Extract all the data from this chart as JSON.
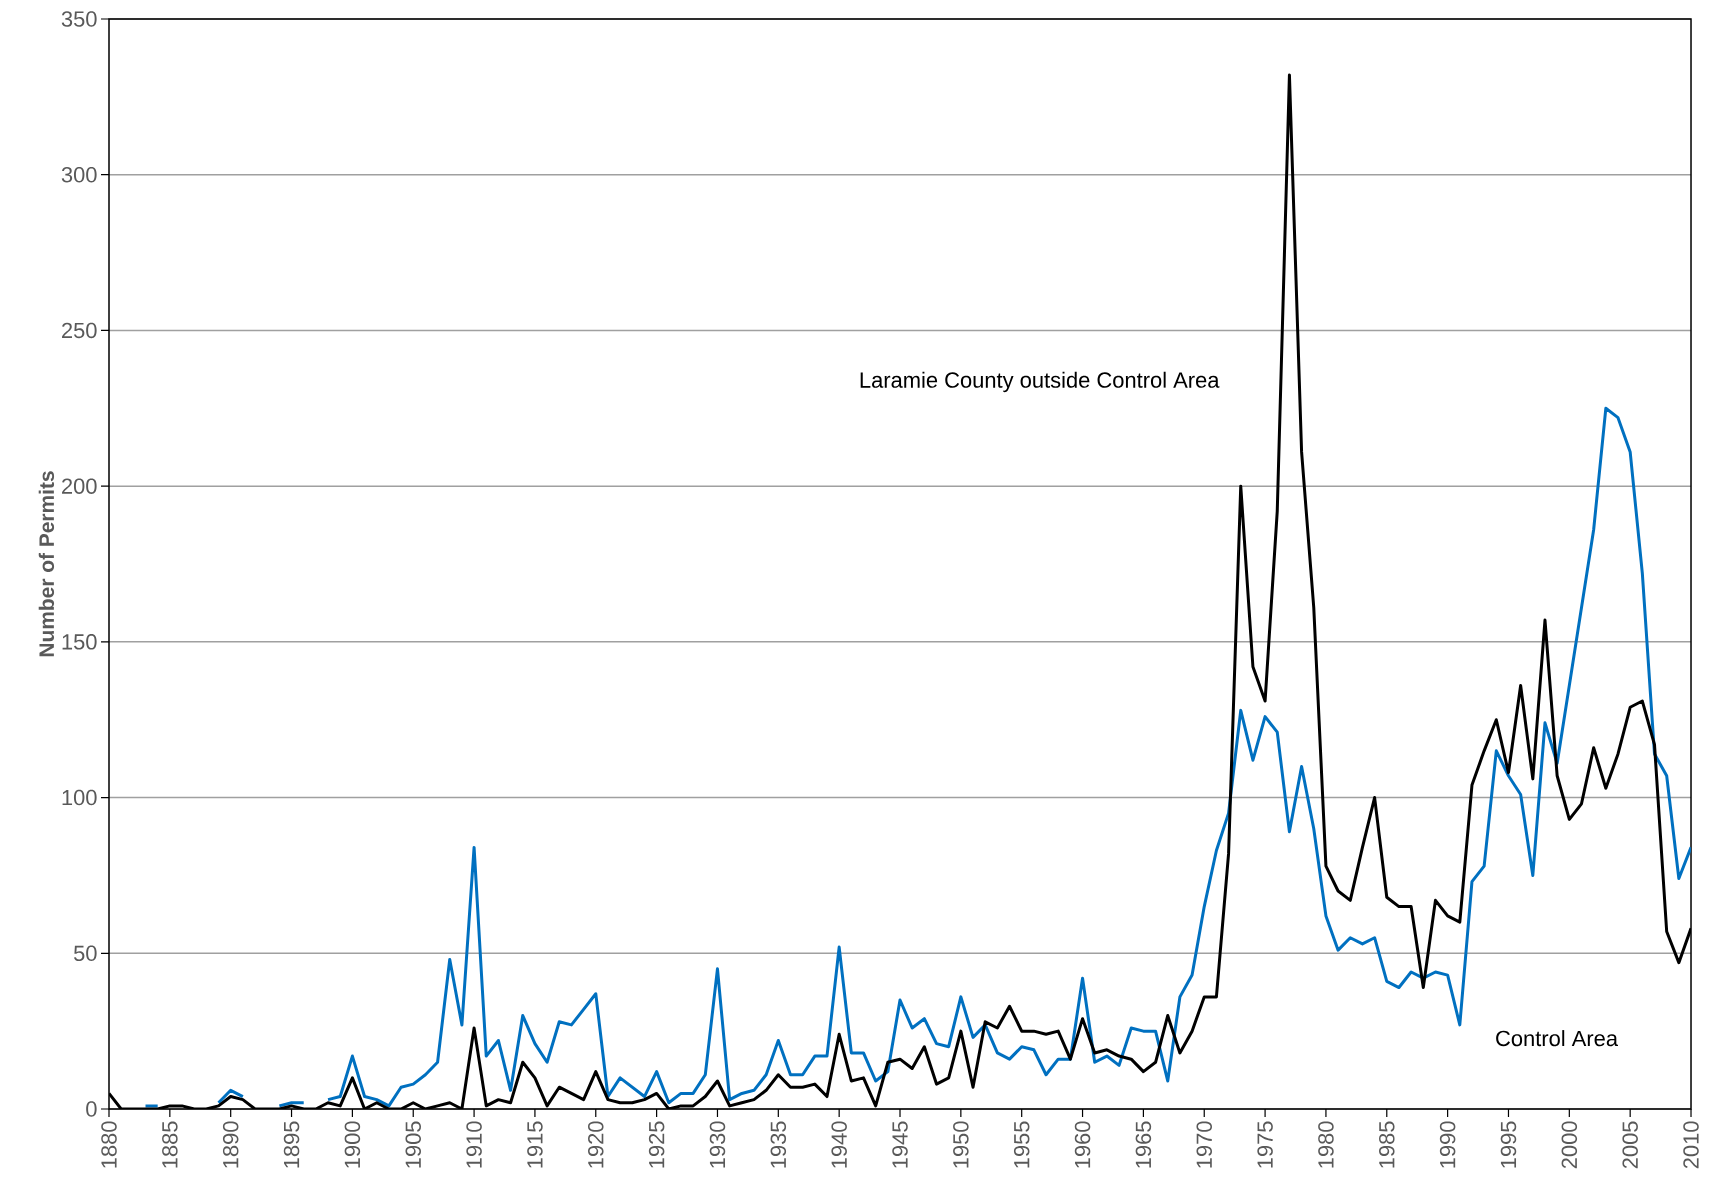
{
  "chart_data": {
    "type": "line",
    "ylabel": "Number of Permits",
    "x": [
      1880,
      1881,
      1882,
      1883,
      1884,
      1885,
      1886,
      1887,
      1888,
      1889,
      1890,
      1891,
      1892,
      1893,
      1894,
      1895,
      1896,
      1897,
      1898,
      1899,
      1900,
      1901,
      1902,
      1903,
      1904,
      1905,
      1906,
      1907,
      1908,
      1909,
      1910,
      1911,
      1912,
      1913,
      1914,
      1915,
      1916,
      1917,
      1918,
      1919,
      1920,
      1921,
      1922,
      1923,
      1924,
      1925,
      1926,
      1927,
      1928,
      1929,
      1930,
      1931,
      1932,
      1933,
      1934,
      1935,
      1936,
      1937,
      1938,
      1939,
      1940,
      1941,
      1942,
      1943,
      1944,
      1945,
      1946,
      1947,
      1948,
      1949,
      1950,
      1951,
      1952,
      1953,
      1954,
      1955,
      1956,
      1957,
      1958,
      1959,
      1960,
      1961,
      1962,
      1963,
      1964,
      1965,
      1966,
      1967,
      1968,
      1969,
      1970,
      1971,
      1972,
      1973,
      1974,
      1975,
      1976,
      1977,
      1978,
      1979,
      1980,
      1981,
      1982,
      1983,
      1984,
      1985,
      1986,
      1987,
      1988,
      1989,
      1990,
      1991,
      1992,
      1993,
      1994,
      1995,
      1996,
      1997,
      1998,
      1999,
      2000,
      2001,
      2002,
      2003,
      2004,
      2005,
      2006,
      2007,
      2008,
      2009,
      2010
    ],
    "series": [
      {
        "name": "Control Area",
        "color": "#0070c0",
        "values": [
          null,
          null,
          null,
          1,
          1,
          null,
          null,
          null,
          null,
          2,
          6,
          4,
          null,
          null,
          1,
          2,
          2,
          null,
          3,
          4,
          17,
          4,
          3,
          1,
          7,
          8,
          11,
          15,
          48,
          27,
          84,
          17,
          22,
          6,
          30,
          21,
          15,
          28,
          27,
          32,
          37,
          4,
          10,
          7,
          4,
          12,
          2,
          5,
          5,
          11,
          45,
          3,
          5,
          6,
          11,
          22,
          11,
          11,
          17,
          17,
          52,
          18,
          18,
          9,
          12,
          35,
          26,
          29,
          21,
          20,
          36,
          23,
          27,
          18,
          16,
          20,
          19,
          11,
          16,
          16,
          42,
          15,
          17,
          14,
          26,
          25,
          25,
          9,
          36,
          43,
          65,
          83,
          95,
          128,
          112,
          126,
          121,
          89,
          110,
          90,
          62,
          51,
          55,
          53,
          55,
          41,
          39,
          44,
          42,
          44,
          43,
          27,
          73,
          78,
          115,
          107,
          101,
          75,
          124,
          111,
          136,
          161,
          186,
          225,
          222,
          211,
          172,
          114,
          107,
          74,
          84
        ]
      },
      {
        "name": "Laramie County outside Control Area",
        "color": "#000000",
        "values": [
          5,
          0,
          0,
          0,
          0,
          1,
          1,
          0,
          0,
          1,
          4,
          3,
          0,
          0,
          0,
          1,
          0,
          0,
          2,
          1,
          10,
          0,
          2,
          0,
          0,
          2,
          0,
          1,
          2,
          0,
          26,
          1,
          3,
          2,
          15,
          10,
          1,
          7,
          5,
          3,
          12,
          3,
          2,
          2,
          3,
          5,
          0,
          1,
          1,
          4,
          9,
          1,
          2,
          3,
          6,
          11,
          7,
          7,
          8,
          4,
          24,
          9,
          10,
          1,
          15,
          16,
          13,
          20,
          8,
          10,
          25,
          7,
          28,
          26,
          33,
          25,
          25,
          24,
          25,
          16,
          29,
          18,
          19,
          17,
          16,
          12,
          15,
          30,
          18,
          25,
          36,
          36,
          82,
          200,
          142,
          131,
          192,
          332,
          211,
          161,
          78,
          70,
          67,
          84,
          100,
          68,
          65,
          65,
          39,
          67,
          62,
          60,
          104,
          115,
          125,
          108,
          136,
          106,
          157,
          107,
          93,
          98,
          116,
          103,
          114,
          129,
          131,
          117,
          57,
          47,
          58
        ]
      }
    ],
    "xlim": [
      1880,
      2010
    ],
    "xticks": [
      1880,
      1885,
      1890,
      1895,
      1900,
      1905,
      1910,
      1915,
      1920,
      1925,
      1930,
      1935,
      1940,
      1945,
      1950,
      1955,
      1960,
      1965,
      1970,
      1975,
      1980,
      1985,
      1990,
      1995,
      2000,
      2005,
      2010
    ],
    "ylim": [
      0,
      350
    ],
    "yticks": [
      0,
      50,
      100,
      150,
      200,
      250,
      300,
      350
    ],
    "grid": "y"
  }
}
